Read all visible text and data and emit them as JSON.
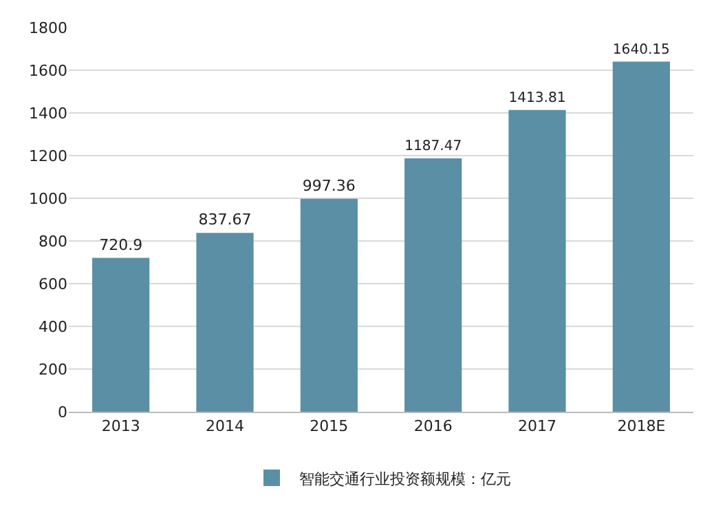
{
  "chart_data": {
    "type": "bar",
    "categories": [
      "2013",
      "2014",
      "2015",
      "2016",
      "2017",
      "2018E"
    ],
    "series": [
      {
        "name": "智能交通行业投资额规模：亿元",
        "color": "#5b8fa6",
        "values": [
          720.9,
          837.67,
          997.36,
          1187.47,
          1413.81,
          1640.15
        ]
      }
    ],
    "ylim": [
      0,
      1800
    ],
    "yticks": [
      0,
      200,
      400,
      600,
      800,
      1000,
      1200,
      1400,
      1600,
      1800
    ],
    "grid": "y",
    "legend": "bottom",
    "data_labels": true
  }
}
